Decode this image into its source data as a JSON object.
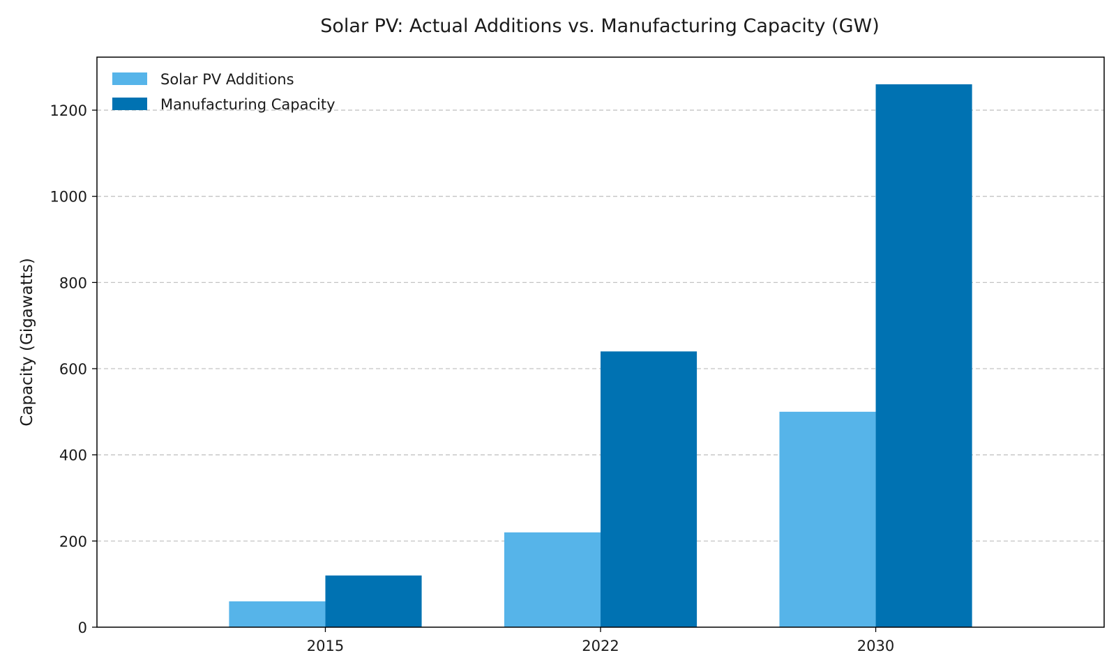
{
  "chart_data": {
    "type": "bar",
    "title": "Solar PV: Actual Additions vs. Manufacturing Capacity (GW)",
    "xlabel": "",
    "ylabel": "Capacity (Gigawatts)",
    "categories": [
      "2015",
      "2022",
      "2030"
    ],
    "series": [
      {
        "name": "Solar PV Additions",
        "values": [
          60,
          220,
          500
        ],
        "color": "#56b4e9"
      },
      {
        "name": "Manufacturing Capacity",
        "values": [
          120,
          640,
          1260
        ],
        "color": "#0072b2"
      }
    ],
    "ylim": [
      0,
      1323
    ],
    "yticks": [
      0,
      200,
      400,
      600,
      800,
      1000,
      1200
    ],
    "grid": true,
    "grid_axis": "y",
    "legend_position": "top-left"
  }
}
